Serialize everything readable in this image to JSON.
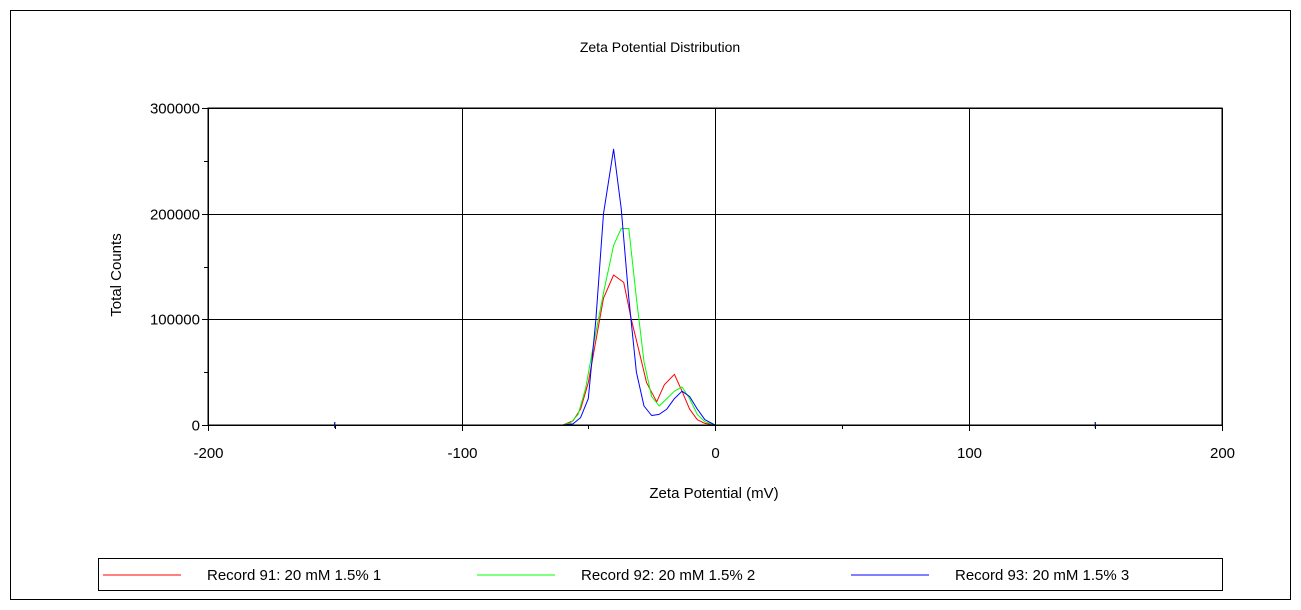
{
  "chart_data": {
    "type": "line",
    "title": "Zeta Potential Distribution",
    "xlabel": "Zeta Potential (mV)",
    "ylabel": "Total Counts",
    "xlim": [
      -200,
      200
    ],
    "ylim": [
      0,
      300000
    ],
    "x_ticks": [
      -200,
      -100,
      0,
      100,
      200
    ],
    "y_ticks": [
      0,
      100000,
      200000,
      300000
    ],
    "grid": true,
    "legend_position": "bottom",
    "series": [
      {
        "name": "Record 91: 20 mM 1.5%  1",
        "color": "#ff0000",
        "points": [
          [
            -150,
            0
          ],
          [
            -60,
            0
          ],
          [
            -56,
            4000
          ],
          [
            -53,
            15000
          ],
          [
            -50,
            40000
          ],
          [
            -47,
            80000
          ],
          [
            -44,
            120000
          ],
          [
            -40,
            142000
          ],
          [
            -36,
            135000
          ],
          [
            -33,
            100000
          ],
          [
            -30,
            70000
          ],
          [
            -27,
            40000
          ],
          [
            -23,
            22000
          ],
          [
            -20,
            38000
          ],
          [
            -16,
            48000
          ],
          [
            -13,
            32000
          ],
          [
            -10,
            15000
          ],
          [
            -7,
            5000
          ],
          [
            -4,
            1500
          ],
          [
            0,
            0
          ],
          [
            150,
            0
          ]
        ]
      },
      {
        "name": "Record 92: 20 mM 1.5%  2",
        "color": "#00ff00",
        "points": [
          [
            -150,
            0
          ],
          [
            -60,
            0
          ],
          [
            -57,
            2000
          ],
          [
            -54,
            10000
          ],
          [
            -51,
            35000
          ],
          [
            -48,
            75000
          ],
          [
            -44,
            125000
          ],
          [
            -40,
            170000
          ],
          [
            -37,
            186000
          ],
          [
            -34,
            186000
          ],
          [
            -31,
            120000
          ],
          [
            -28,
            60000
          ],
          [
            -25,
            27000
          ],
          [
            -22,
            18000
          ],
          [
            -19,
            25000
          ],
          [
            -16,
            32000
          ],
          [
            -13,
            36000
          ],
          [
            -10,
            25000
          ],
          [
            -7,
            10000
          ],
          [
            -4,
            3000
          ],
          [
            0,
            0
          ],
          [
            150,
            0
          ]
        ]
      },
      {
        "name": "Record 93: 20 mM 1.5%  3",
        "color": "#0000ff",
        "points": [
          [
            -150,
            0
          ],
          [
            -60,
            0
          ],
          [
            -56,
            1000
          ],
          [
            -53,
            7000
          ],
          [
            -50,
            25000
          ],
          [
            -47,
            100000
          ],
          [
            -44,
            200000
          ],
          [
            -40,
            261000
          ],
          [
            -37,
            205000
          ],
          [
            -34,
            120000
          ],
          [
            -31,
            50000
          ],
          [
            -28,
            18000
          ],
          [
            -25,
            9000
          ],
          [
            -22,
            10000
          ],
          [
            -19,
            15000
          ],
          [
            -16,
            25000
          ],
          [
            -13,
            32000
          ],
          [
            -10,
            27000
          ],
          [
            -7,
            15000
          ],
          [
            -4,
            5000
          ],
          [
            0,
            0
          ],
          [
            150,
            0
          ]
        ]
      }
    ]
  }
}
